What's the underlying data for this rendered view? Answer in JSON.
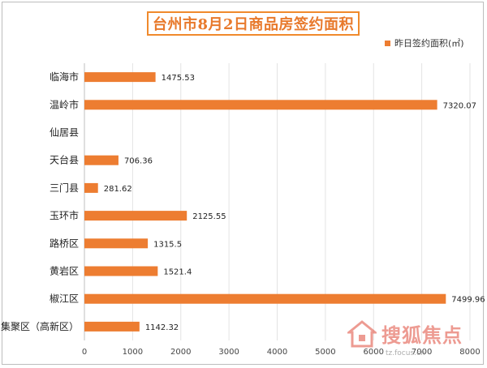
{
  "chart_data": {
    "type": "bar",
    "orientation": "horizontal",
    "title": "台州市8月2日商品房签约面积",
    "categories": [
      "临海市",
      "温岭市",
      "仙居县",
      "天台县",
      "三门县",
      "玉环市",
      "路桥区",
      "黄岩区",
      "椒江区",
      "集聚区（高新区）"
    ],
    "series": [
      {
        "name": "昨日签约面积(㎡)",
        "values": [
          1475.53,
          7320.07,
          null,
          706.36,
          281.62,
          2125.55,
          1315.5,
          1521.4,
          7499.96,
          1142.32
        ],
        "labels": [
          "1475.53",
          "7320.07",
          "",
          "706.36",
          "281.62",
          "2125.55",
          "1315.5",
          "1521.4",
          "7499.96",
          "1142.32"
        ]
      }
    ],
    "xlim": [
      0,
      8000
    ],
    "xticks": [
      "0",
      "1000",
      "2000",
      "3000",
      "4000",
      "5000",
      "6000",
      "7000",
      "8000"
    ],
    "grid": true,
    "legend_position": "top-right",
    "bar_color": "#ed7d31"
  },
  "watermark": {
    "brand": "搜狐焦点",
    "domain": "tz.focus.cn",
    "icon": "house-logo-icon"
  }
}
